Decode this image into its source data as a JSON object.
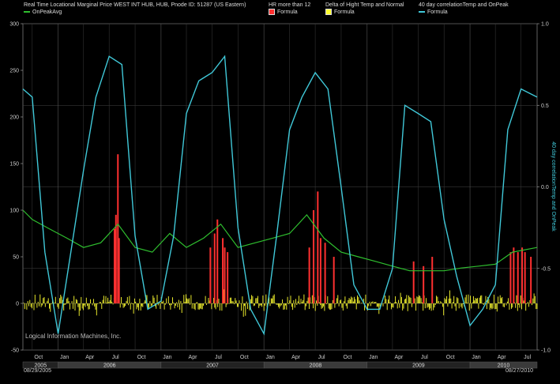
{
  "legend": {
    "series1": {
      "title": "Real Time Locational Marginal Price WEST INT HUB, HUB, Pnode ID: 51287 (US Eastern)",
      "name": "OnPeakAvg",
      "color": "#2fbf2f"
    },
    "series2": {
      "title": "HR more than 12",
      "name": "Formula",
      "color": "#ff3030"
    },
    "series3": {
      "title": "Delta  of Hight Temp and Normal",
      "name": "Formula",
      "color": "#ffff30"
    },
    "series4": {
      "title": "40 day correlationTemp and OnPeak",
      "name": "Formula",
      "color": "#40c8d8"
    }
  },
  "watermark": "Logical Information Machines, Inc.",
  "date_range": {
    "start": "08/29/2005",
    "end": "08/27/2010"
  },
  "chart_data": {
    "type": "line",
    "left_axis": {
      "range": [
        -50,
        300
      ],
      "ticks": [
        -50,
        0,
        50,
        100,
        150,
        200,
        250,
        300
      ]
    },
    "right_axis": {
      "label": "40 day correlationTemp and OnPeak",
      "range": [
        -1.0,
        1.0
      ],
      "ticks": [
        "-1.0",
        "-0.5",
        "0.0",
        "0.5",
        "1.0"
      ]
    },
    "x_months": [
      "Oct",
      "Jan",
      "Apr",
      "Jul",
      "Oct",
      "Jan",
      "Apr",
      "Jul",
      "Oct",
      "Jan",
      "Apr",
      "Jul",
      "Oct",
      "Jan",
      "Apr",
      "Jul",
      "Oct",
      "Jan",
      "Apr",
      "Jul"
    ],
    "x_years": [
      "2005",
      "2006",
      "2007",
      "2008",
      "2009",
      "2010"
    ],
    "correlation": {
      "name": "40 day correlationTemp and OnPeak",
      "x": [
        "2005-08-29",
        "2005-10-01",
        "2005-11-15",
        "2006-01-01",
        "2006-02-15",
        "2006-04-01",
        "2006-05-15",
        "2006-07-01",
        "2006-08-15",
        "2006-10-01",
        "2006-11-15",
        "2007-01-01",
        "2007-02-15",
        "2007-04-01",
        "2007-05-15",
        "2007-07-01",
        "2007-08-15",
        "2007-10-01",
        "2007-11-15",
        "2008-01-01",
        "2008-02-15",
        "2008-04-01",
        "2008-05-15",
        "2008-07-01",
        "2008-08-15",
        "2008-10-01",
        "2008-11-15",
        "2009-01-01",
        "2009-02-15",
        "2009-04-01",
        "2009-05-15",
        "2009-07-01",
        "2009-08-15",
        "2009-10-01",
        "2009-11-15",
        "2010-01-01",
        "2010-02-15",
        "2010-04-01",
        "2010-05-15",
        "2010-07-01",
        "2010-08-27"
      ],
      "y": [
        0.6,
        0.55,
        -0.4,
        -0.9,
        -0.4,
        0.1,
        0.55,
        0.8,
        0.75,
        -0.3,
        -0.75,
        -0.7,
        -0.3,
        0.45,
        0.65,
        0.7,
        0.8,
        -0.25,
        -0.75,
        -0.9,
        -0.3,
        0.35,
        0.55,
        0.7,
        0.6,
        0.0,
        -0.6,
        -0.75,
        -0.75,
        -0.5,
        0.5,
        0.45,
        0.4,
        -0.2,
        -0.55,
        -0.85,
        -0.75,
        -0.6,
        0.35,
        0.6,
        0.55
      ]
    },
    "onpeak_avg": {
      "name": "OnPeakAvg",
      "x": [
        "2005-08-29",
        "2005-10-01",
        "2005-12-01",
        "2006-02-01",
        "2006-04-01",
        "2006-06-01",
        "2006-08-01",
        "2006-10-01",
        "2006-12-01",
        "2007-02-01",
        "2007-04-01",
        "2007-06-01",
        "2007-08-01",
        "2007-10-01",
        "2007-12-01",
        "2008-02-01",
        "2008-04-01",
        "2008-06-01",
        "2008-08-01",
        "2008-10-01",
        "2008-12-01",
        "2009-02-01",
        "2009-04-01",
        "2009-06-01",
        "2009-08-01",
        "2009-10-01",
        "2009-12-01",
        "2010-02-01",
        "2010-04-01",
        "2010-06-01",
        "2010-08-27"
      ],
      "y": [
        100,
        90,
        80,
        70,
        60,
        65,
        85,
        60,
        55,
        75,
        60,
        70,
        85,
        60,
        65,
        70,
        75,
        95,
        70,
        55,
        50,
        45,
        40,
        35,
        35,
        35,
        38,
        40,
        42,
        55,
        60
      ]
    },
    "hr_more_than_12": {
      "name": "HR more than 12",
      "x": [
        "2006-07-20",
        "2006-07-25",
        "2006-08-01",
        "2006-08-05",
        "2007-06-25",
        "2007-07-10",
        "2007-07-20",
        "2007-08-08",
        "2007-08-15",
        "2007-08-25",
        "2008-06-10",
        "2008-06-25",
        "2008-07-10",
        "2008-07-20",
        "2008-08-05",
        "2008-09-05",
        "2009-06-15",
        "2009-07-20",
        "2009-08-20",
        "2010-05-25",
        "2010-06-05",
        "2010-06-20",
        "2010-07-05",
        "2010-07-15",
        "2010-08-05"
      ],
      "y": [
        80,
        95,
        160,
        70,
        60,
        75,
        90,
        70,
        60,
        55,
        60,
        100,
        120,
        70,
        65,
        50,
        45,
        40,
        50,
        55,
        60,
        55,
        60,
        55,
        50
      ]
    },
    "temp_delta": {
      "name": "Delta  of Hight Temp and Normal",
      "range": [
        -20,
        20
      ]
    }
  }
}
